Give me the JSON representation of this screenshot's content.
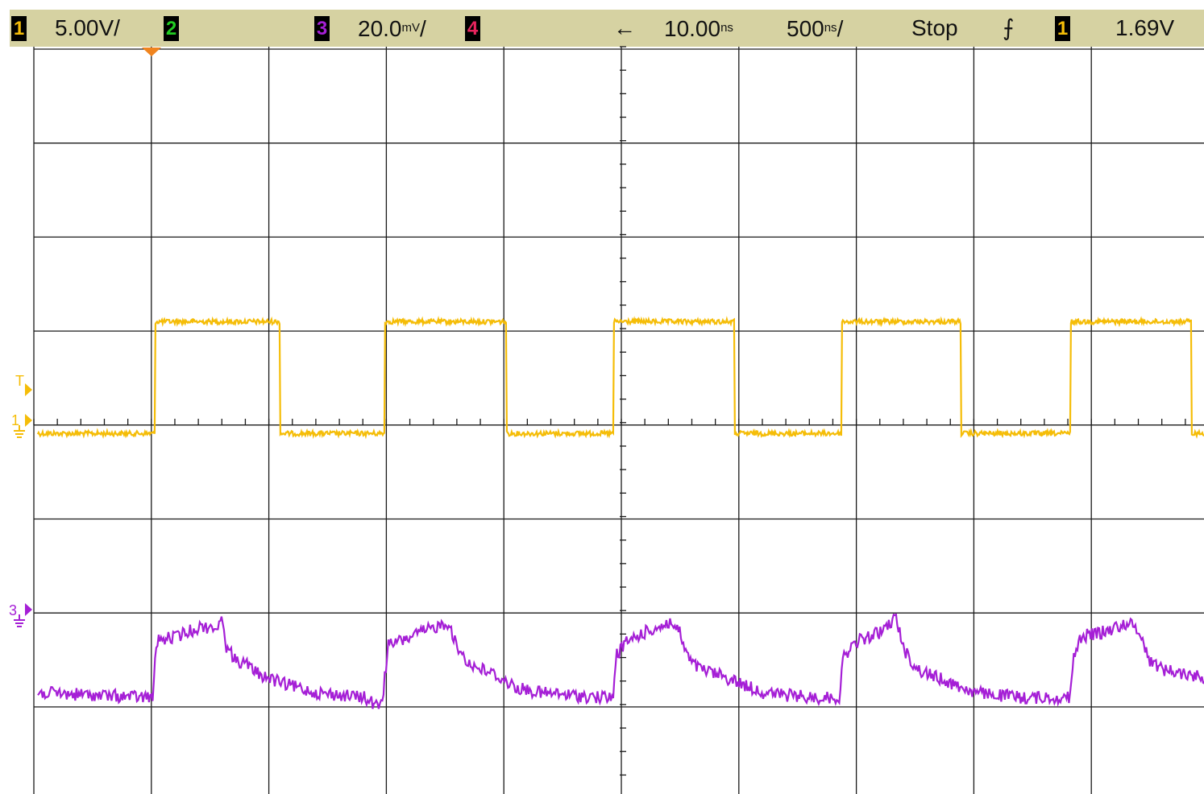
{
  "status_bar": {
    "ch1_badge": "1",
    "ch1_scale": "5.00V/",
    "ch2_badge": "2",
    "ch3_badge": "3",
    "ch3_scale": "20.0",
    "ch3_unit": "mV",
    "ch3_slash": "/",
    "ch4_badge": "4",
    "delay_arrow": "←",
    "delay_value": "10.00",
    "delay_unit": "ns",
    "timebase_value": "500",
    "timebase_unit": "ns",
    "timebase_slash": "/",
    "run_state": "Stop",
    "trigger_slope_symbol": "⨍",
    "trigger_source_badge": "1",
    "trigger_level": "1.69V"
  },
  "colors": {
    "ch1": "#f5bd08",
    "ch2": "#22cc22",
    "ch3": "#a51fd6",
    "ch4": "#e8245e",
    "status_bg": "#d6d2a2",
    "grid": "#1a1a1a",
    "trigger_marker": "#f0841e"
  },
  "screen_labels": {
    "trigger_level_marker": "T",
    "ch1_ground_marker": "1",
    "ch3_ground_marker": "3"
  },
  "chart_data": {
    "type": "line",
    "title": "",
    "xlabel": "",
    "ylabel": "",
    "grid": true,
    "x_divisions": 10,
    "y_divisions": 8,
    "time_per_div_ns": 500,
    "x_range_ns": [
      -2490,
      2510
    ],
    "series": [
      {
        "name": "1",
        "volts_per_div": 5.0,
        "ground_div_from_top": 4.0,
        "noise_div": 0.01,
        "points_ns_volts": [
          [
            -2490,
            -0.35
          ],
          [
            -1990,
            -0.45
          ],
          [
            -1975,
            5.35
          ],
          [
            -1950,
            5.55
          ],
          [
            -1460,
            5.45
          ],
          [
            -1450,
            5.1
          ],
          [
            -1420,
            -0.45
          ],
          [
            -1360,
            -0.55
          ],
          [
            -545,
            -0.5
          ],
          [
            -530,
            5.45
          ],
          [
            -500,
            5.6
          ],
          [
            -20,
            5.45
          ],
          [
            -10,
            5.1
          ],
          [
            20,
            -0.55
          ],
          [
            60,
            -0.45
          ],
          [
            -1005,
            -0.45
          ],
          [
            -990,
            -0.45
          ],
          [
            1140,
            -0.45
          ],
          [
            1150,
            5.5
          ],
          [
            1180,
            5.55
          ],
          [
            1100,
            -0.45
          ],
          [
            1665,
            5.45
          ],
          [
            1675,
            5.1
          ],
          [
            1700,
            -0.5
          ],
          [
            1745,
            -0.5
          ]
        ],
        "pulses": [
          {
            "rise_ns": -1990,
            "fall_ns": -1460
          },
          {
            "rise_ns": -1015,
            "fall_ns": -495
          },
          {
            "rise_ns": -40,
            "fall_ns": 475
          },
          {
            "rise_ns": 930,
            "fall_ns": 1440
          },
          {
            "rise_ns": 1905,
            "fall_ns": 2420
          }
        ],
        "high_v": 5.5,
        "low_v": -0.45
      },
      {
        "name": "3",
        "mv_per_div": 20.0,
        "ground_div_from_top": 6.0,
        "noise_div": 0.05,
        "points_ns_mv": [
          [
            -2490,
            -17
          ],
          [
            -2000,
            -18
          ],
          [
            -1985,
            -6
          ],
          [
            -1900,
            -5
          ],
          [
            -1800,
            -3
          ],
          [
            -1720,
            -3
          ],
          [
            -1700,
            -1
          ],
          [
            -1690,
            -7
          ],
          [
            -1650,
            -10
          ],
          [
            -1600,
            -11
          ],
          [
            -1550,
            -13
          ],
          [
            -1450,
            -15
          ],
          [
            -1300,
            -17
          ],
          [
            -1100,
            -18
          ],
          [
            -1040,
            -20
          ],
          [
            -1020,
            -17
          ],
          [
            -1000,
            -7
          ],
          [
            -900,
            -5
          ],
          [
            -800,
            -3
          ],
          [
            -740,
            -2
          ],
          [
            -710,
            -7
          ],
          [
            -650,
            -11
          ],
          [
            -550,
            -13
          ],
          [
            -450,
            -16
          ],
          [
            -350,
            -17
          ],
          [
            -100,
            -18
          ],
          [
            -40,
            -18
          ],
          [
            -30,
            -9
          ],
          [
            20,
            -6
          ],
          [
            100,
            -4
          ],
          [
            200,
            -2
          ],
          [
            240,
            -4
          ],
          [
            280,
            -10
          ],
          [
            330,
            -12
          ],
          [
            400,
            -13
          ],
          [
            500,
            -15
          ],
          [
            600,
            -17
          ],
          [
            800,
            -18
          ],
          [
            920,
            -18
          ],
          [
            940,
            -9
          ],
          [
            1000,
            -6
          ],
          [
            1100,
            -4
          ],
          [
            1160,
            -1
          ],
          [
            1200,
            -8
          ],
          [
            1250,
            -12
          ],
          [
            1300,
            -13
          ],
          [
            1400,
            -15
          ],
          [
            1500,
            -17
          ],
          [
            1700,
            -18
          ],
          [
            1900,
            -18
          ],
          [
            1920,
            -9
          ],
          [
            1950,
            -5
          ],
          [
            2050,
            -4
          ],
          [
            2150,
            -2
          ],
          [
            2200,
            -4
          ],
          [
            2240,
            -10
          ],
          [
            2300,
            -12
          ],
          [
            2400,
            -13
          ],
          [
            2510,
            -14
          ]
        ]
      }
    ]
  }
}
